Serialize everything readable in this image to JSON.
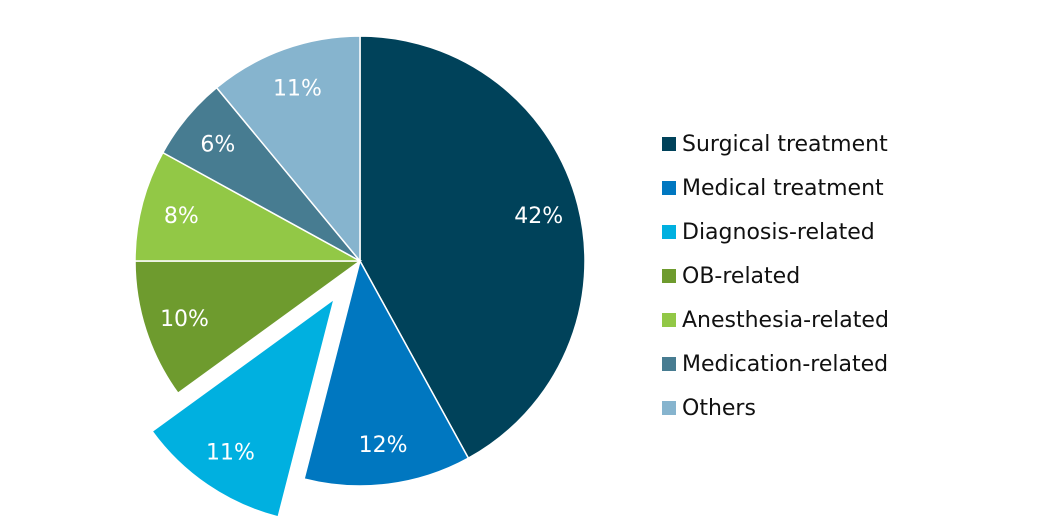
{
  "chart_data": {
    "type": "pie",
    "start": "top",
    "direction": "clockwise",
    "exploded": [
      "Diagnosis-related"
    ],
    "legend_position": "right",
    "slices": [
      {
        "label": "Surgical treatment",
        "value": 42,
        "display": "42%",
        "color": "#00425A"
      },
      {
        "label": "Medical treatment",
        "value": 12,
        "display": "12%",
        "color": "#0077C0"
      },
      {
        "label": "Diagnosis-related",
        "value": 11,
        "display": "11%",
        "color": "#00B0E0"
      },
      {
        "label": "OB-related",
        "value": 10,
        "display": "10%",
        "color": "#6E9B2E"
      },
      {
        "label": "Anesthesia-related",
        "value": 8,
        "display": "8%",
        "color": "#92C846"
      },
      {
        "label": "Medication-related",
        "value": 6,
        "display": "6%",
        "color": "#477C91"
      },
      {
        "label": "Others",
        "value": 11,
        "display": "11%",
        "color": "#86B4CE"
      }
    ]
  }
}
